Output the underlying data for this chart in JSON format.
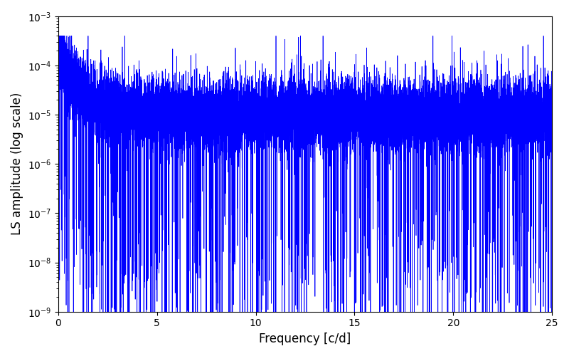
{
  "title": "",
  "xlabel": "Frequency [c/d]",
  "ylabel": "LS amplitude (log scale)",
  "xlim": [
    0,
    25
  ],
  "ylim": [
    1e-09,
    0.001
  ],
  "line_color": "#0000ff",
  "line_width": 0.5,
  "background_color": "#ffffff",
  "figsize": [
    8.0,
    5.0
  ],
  "dpi": 100,
  "seed": 12345,
  "n_points": 15000,
  "freq_max": 25.0
}
